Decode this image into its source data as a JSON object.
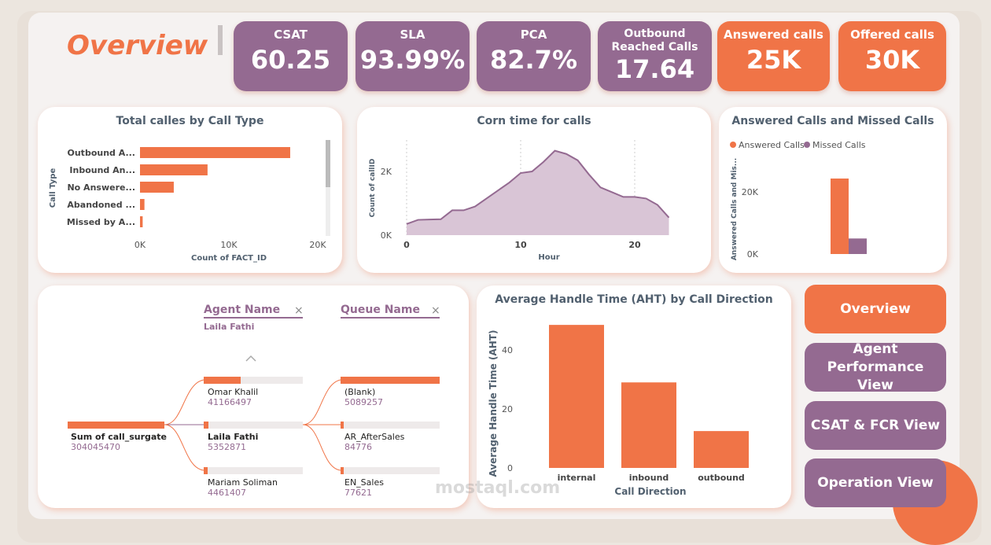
{
  "header": {
    "title": "Overview"
  },
  "kpis": [
    {
      "label": "CSAT",
      "value": "60.25",
      "color": "#946a91"
    },
    {
      "label": "SLA",
      "value": "93.99%",
      "color": "#946a91"
    },
    {
      "label": "PCA",
      "value": "82.7%",
      "color": "#946a91"
    },
    {
      "label": "Outbound Reached Calls",
      "value": "17.64",
      "color": "#946a91"
    },
    {
      "label": "Answered calls",
      "value": "25K",
      "color": "#f07447"
    },
    {
      "label": "Offered calls",
      "value": "30K",
      "color": "#f07447"
    }
  ],
  "nav": [
    {
      "label": "Overview",
      "active": true
    },
    {
      "label": "Agent Performance View"
    },
    {
      "label": "CSAT & FCR View"
    },
    {
      "label": "Operation View"
    }
  ],
  "decomp": {
    "agent_header": "Agent Name",
    "agent_filter": "Laila Fathi",
    "queue_header": "Queue Name",
    "root": {
      "label": "Sum of call_surgate",
      "value": "304045470"
    },
    "agents": [
      {
        "label": "Omar Khalil",
        "value": "41166497",
        "fill": 0.37
      },
      {
        "label": "Laila Fathi",
        "value": "5352871",
        "fill": 0.05
      },
      {
        "label": "Mariam Soliman",
        "value": "4461407",
        "fill": 0.04
      }
    ],
    "queues": [
      {
        "label": "(Blank)",
        "value": "5089257",
        "fill": 1
      },
      {
        "label": "AR_AfterSales",
        "value": "84776",
        "fill": 0.02
      },
      {
        "label": "EN_Sales",
        "value": "77621",
        "fill": 0.02
      }
    ]
  },
  "watermark": "mostaql.com",
  "chart_data": [
    {
      "type": "bar",
      "orientation": "horizontal",
      "title": "Total calles by Call Type",
      "xlabel": "Count of FACT_ID",
      "ylabel": "Call Type",
      "categories": [
        "Outbound A...",
        "Inbound An...",
        "No Answere...",
        "Abandoned ...",
        "Missed by A..."
      ],
      "values": [
        16900,
        7600,
        3800,
        500,
        300
      ],
      "xlim": [
        0,
        20000
      ],
      "xticks": [
        "0K",
        "10K",
        "20K"
      ],
      "color": "#f07447"
    },
    {
      "type": "area",
      "title": "Corn time for calls",
      "xlabel": "Hour",
      "ylabel": "Count of callID",
      "x": [
        0,
        1,
        2,
        3,
        4,
        5,
        6,
        7,
        8,
        9,
        10,
        11,
        12,
        13,
        14,
        15,
        16,
        17,
        18,
        19,
        20,
        21,
        22,
        23
      ],
      "values": [
        350,
        480,
        490,
        500,
        780,
        780,
        900,
        1150,
        1400,
        1650,
        1950,
        2000,
        2300,
        2650,
        2550,
        2350,
        1900,
        1500,
        1350,
        1200,
        1200,
        1150,
        950,
        550
      ],
      "xticks": [
        "0",
        "10",
        "20"
      ],
      "yticks": [
        "0K",
        "2K"
      ],
      "ylim": [
        0,
        2900
      ],
      "color": "#946a91"
    },
    {
      "type": "bar",
      "title": "Answered Calls and Missed Calls",
      "ylabel": "Answered Calls and Mis...",
      "series": [
        {
          "name": "Answered Calls",
          "values": [
            24300
          ],
          "color": "#f07447"
        },
        {
          "name": "Missed Calls",
          "values": [
            5000
          ],
          "color": "#946a91"
        }
      ],
      "yticks": [
        "0K",
        "20K"
      ],
      "ylim": [
        0,
        28000
      ],
      "legend": "top-left"
    },
    {
      "type": "bar",
      "title": "Average Handle Time (AHT) by Call Direction",
      "xlabel": "Call Direction",
      "ylabel": "Average Handle Time (AHT)",
      "categories": [
        "internal",
        "inbound",
        "outbound"
      ],
      "values": [
        48.5,
        29,
        12.5
      ],
      "yticks": [
        "0",
        "20",
        "40"
      ],
      "ylim": [
        0,
        52
      ],
      "color": "#f07447"
    }
  ]
}
